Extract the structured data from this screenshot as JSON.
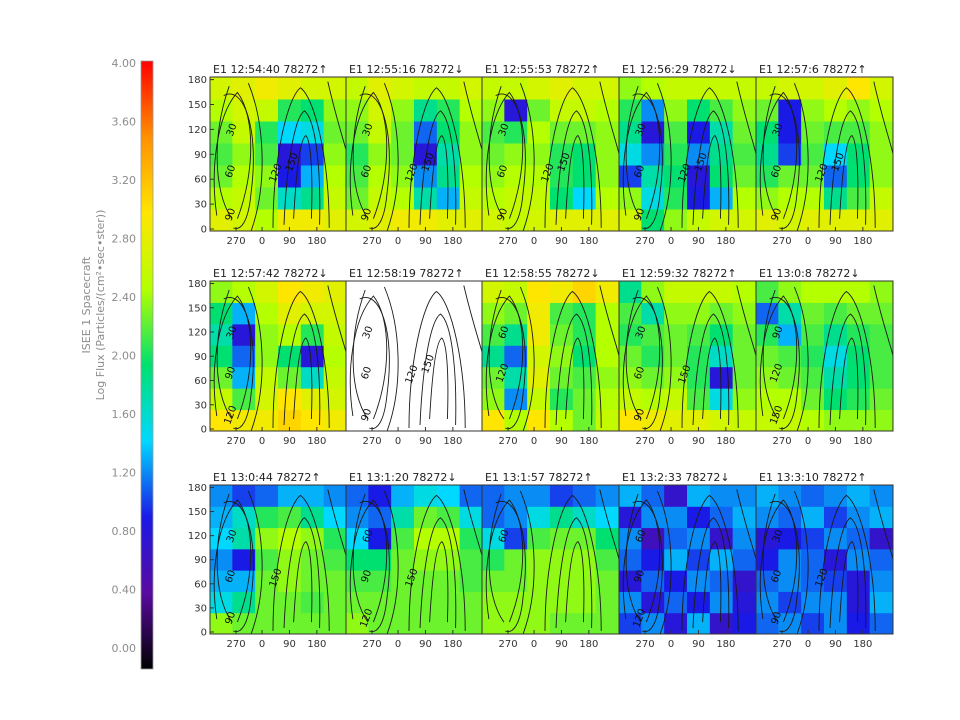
{
  "chart_data": {
    "type": "heatmap",
    "title": "",
    "colorbar": {
      "label_lines": [
        "ISEE 1 Spacecraft",
        "Log Flux (Particles/(cm²•sec•ster))"
      ],
      "ticks": [
        "0.00",
        "0.40",
        "0.80",
        "1.20",
        "1.60",
        "2.00",
        "2.40",
        "2.80",
        "3.20",
        "3.60",
        "4.00"
      ],
      "range": [
        0.0,
        4.0
      ],
      "colors": [
        "#000000",
        "#5a0aa0",
        "#1a1ae6",
        "#00d8ff",
        "#00e070",
        "#b4ff00",
        "#ffe600",
        "#ff9000",
        "#ff0000"
      ]
    },
    "x_ticks": [
      "270",
      "0",
      "90",
      "180"
    ],
    "y_ticks": [
      "0",
      "30",
      "60",
      "90",
      "120",
      "150",
      "180"
    ],
    "panels": [
      {
        "title": "E1 12:54:40 78272↑",
        "contour_labels": [
          "30",
          "60",
          "90",
          "120",
          "150"
        ],
        "grid": [
          [
            2.8,
            2.7,
            2.5,
            2.9,
            2.9,
            2.8
          ],
          [
            2.5,
            2.6,
            2.3,
            1.7,
            1.9,
            2.6
          ],
          [
            2.3,
            2.5,
            2.4,
            1.0,
            1.4,
            2.5
          ],
          [
            2.2,
            2.4,
            2.2,
            0.9,
            1.1,
            2.4
          ],
          [
            2.3,
            2.6,
            2.1,
            1.5,
            1.6,
            2.3
          ],
          [
            2.5,
            2.7,
            2.6,
            2.1,
            2.0,
            2.4
          ],
          [
            2.7,
            2.8,
            2.9,
            2.8,
            2.7,
            2.7
          ]
        ]
      },
      {
        "title": "E1 12:55:16 78272↓",
        "contour_labels": [
          "30",
          "60",
          "90",
          "120",
          "150"
        ],
        "grid": [
          [
            2.7,
            2.8,
            2.9,
            2.9,
            2.8,
            2.8
          ],
          [
            2.3,
            2.6,
            2.5,
            1.8,
            1.4,
            2.6
          ],
          [
            2.2,
            2.5,
            2.4,
            1.3,
            1.9,
            2.5
          ],
          [
            2.1,
            2.4,
            2.3,
            0.9,
            1.8,
            2.4
          ],
          [
            2.3,
            2.6,
            2.3,
            1.2,
            2.0,
            2.4
          ],
          [
            2.4,
            2.7,
            2.4,
            1.9,
            2.1,
            2.5
          ],
          [
            2.6,
            2.8,
            2.7,
            2.6,
            2.6,
            2.7
          ]
        ]
      },
      {
        "title": "E1 12:55:53 78272↑",
        "contour_labels": [
          "30",
          "60",
          "90",
          "120",
          "150"
        ],
        "grid": [
          [
            2.7,
            2.6,
            2.7,
            2.8,
            2.8,
            2.8
          ],
          [
            2.5,
            2.6,
            2.6,
            2.0,
            1.5,
            2.5
          ],
          [
            2.4,
            2.5,
            2.5,
            2.1,
            2.0,
            2.4
          ],
          [
            2.3,
            2.4,
            2.4,
            2.1,
            2.0,
            2.4
          ],
          [
            2.2,
            2.1,
            2.5,
            2.3,
            2.3,
            2.4
          ],
          [
            2.4,
            0.9,
            2.3,
            2.6,
            2.6,
            2.5
          ],
          [
            2.6,
            2.6,
            2.7,
            2.8,
            2.7,
            2.7
          ]
        ]
      },
      {
        "title": "E1 12:56:29 78272↓",
        "contour_labels": [
          "30",
          "60",
          "90",
          "120",
          "150"
        ],
        "grid": [
          [
            2.7,
            2.0,
            2.4,
            2.6,
            2.7,
            2.7
          ],
          [
            2.4,
            1.6,
            2.1,
            1.0,
            1.4,
            2.5
          ],
          [
            1.1,
            1.8,
            2.0,
            0.9,
            2.0,
            2.3
          ],
          [
            1.6,
            1.3,
            2.1,
            1.3,
            1.9,
            2.2
          ],
          [
            1.9,
            0.9,
            2.2,
            1.0,
            1.8,
            2.3
          ],
          [
            2.1,
            1.3,
            2.4,
            2.0,
            2.2,
            2.4
          ],
          [
            2.4,
            2.5,
            2.6,
            2.6,
            2.6,
            2.6
          ]
        ]
      },
      {
        "title": "E1 12:57:6 78272↑",
        "contour_labels": [
          "30",
          "60",
          "90",
          "120",
          "150"
        ],
        "grid": [
          [
            2.8,
            2.7,
            2.8,
            2.8,
            2.8,
            2.8
          ],
          [
            2.4,
            2.5,
            2.5,
            1.9,
            2.2,
            2.6
          ],
          [
            2.1,
            2.3,
            2.3,
            1.2,
            2.0,
            2.4
          ],
          [
            1.9,
            1.1,
            2.2,
            1.5,
            2.0,
            2.4
          ],
          [
            2.0,
            1.0,
            2.3,
            2.2,
            2.2,
            2.4
          ],
          [
            2.3,
            1.0,
            2.4,
            2.5,
            2.4,
            2.5
          ],
          [
            2.6,
            2.7,
            2.7,
            2.8,
            3.0,
            2.7
          ]
        ]
      },
      {
        "title": "E1 12:57:42 78272↓",
        "contour_labels": [
          "30",
          "90",
          "120"
        ],
        "grid": [
          [
            3.0,
            2.9,
            2.9,
            3.1,
            3.0,
            2.9
          ],
          [
            2.6,
            2.2,
            2.7,
            3.0,
            2.8,
            2.7
          ],
          [
            2.3,
            1.4,
            2.6,
            2.3,
            1.7,
            2.6
          ],
          [
            2.0,
            1.2,
            2.4,
            2.0,
            0.9,
            2.5
          ],
          [
            1.8,
            0.9,
            2.4,
            2.5,
            2.1,
            2.6
          ],
          [
            2.0,
            1.4,
            2.5,
            2.8,
            2.7,
            2.7
          ],
          [
            2.4,
            2.5,
            2.7,
            3.0,
            2.9,
            2.8
          ]
        ]
      },
      {
        "title": "E1 12:58:19 78272↑",
        "contour_labels": [
          "30",
          "60",
          "90",
          "120",
          "150"
        ],
        "grid": null
      },
      {
        "title": "E1 12:58:55 78272↓",
        "contour_labels": [
          "60",
          "120"
        ],
        "grid": [
          [
            3.0,
            2.5,
            3.0,
            2.5,
            2.3,
            2.6
          ],
          [
            2.4,
            1.3,
            2.6,
            2.1,
            2.3,
            2.5
          ],
          [
            2.3,
            1.8,
            2.8,
            2.3,
            2.2,
            2.4
          ],
          [
            1.9,
            1.2,
            2.7,
            2.4,
            2.0,
            2.5
          ],
          [
            2.2,
            1.9,
            2.9,
            2.3,
            2.1,
            2.5
          ],
          [
            2.4,
            2.3,
            2.9,
            2.2,
            2.1,
            2.5
          ],
          [
            2.7,
            2.6,
            3.0,
            2.9,
            3.1,
            2.9
          ]
        ]
      },
      {
        "title": "E1 12:59:32 78272↑",
        "contour_labels": [
          "30",
          "60",
          "90",
          "150"
        ],
        "grid": [
          [
            3.0,
            2.9,
            2.8,
            2.8,
            2.7,
            2.6
          ],
          [
            2.6,
            2.5,
            2.6,
            2.2,
            1.6,
            2.4
          ],
          [
            2.4,
            2.3,
            2.4,
            2.1,
            0.9,
            2.3
          ],
          [
            2.3,
            2.1,
            2.3,
            2.1,
            1.7,
            2.3
          ],
          [
            2.1,
            2.2,
            2.3,
            2.2,
            2.0,
            2.3
          ],
          [
            2.2,
            1.8,
            2.4,
            2.4,
            2.3,
            2.4
          ],
          [
            1.9,
            2.4,
            2.6,
            2.6,
            2.6,
            2.5
          ]
        ]
      },
      {
        "title": "E1 13:0:8 78272↓",
        "contour_labels": [
          "90",
          "120",
          "150"
        ],
        "grid": [
          [
            2.6,
            2.6,
            2.5,
            2.4,
            2.4,
            2.4
          ],
          [
            2.5,
            2.5,
            2.3,
            2.0,
            2.1,
            2.3
          ],
          [
            2.4,
            2.3,
            2.2,
            1.8,
            2.0,
            2.2
          ],
          [
            2.3,
            2.2,
            2.1,
            1.6,
            2.0,
            2.2
          ],
          [
            2.1,
            1.4,
            2.2,
            1.9,
            2.1,
            2.2
          ],
          [
            1.2,
            1.8,
            2.3,
            2.2,
            2.3,
            2.3
          ],
          [
            2.2,
            2.4,
            2.5,
            2.5,
            2.5,
            2.4
          ]
        ]
      },
      {
        "title": "E1 13:0:44 78272↑",
        "contour_labels": [
          "30",
          "60",
          "90",
          "150"
        ],
        "grid": [
          [
            2.4,
            2.3,
            2.3,
            2.3,
            2.3,
            2.3
          ],
          [
            1.6,
            1.9,
            2.3,
            2.3,
            2.2,
            2.3
          ],
          [
            1.4,
            1.4,
            2.3,
            2.4,
            2.3,
            2.3
          ],
          [
            1.3,
            1.0,
            2.2,
            2.4,
            2.3,
            2.2
          ],
          [
            1.5,
            1.8,
            2.4,
            2.5,
            2.4,
            2.1
          ],
          [
            1.4,
            1.7,
            2.1,
            2.2,
            1.9,
            1.5
          ],
          [
            1.3,
            1.1,
            1.2,
            1.4,
            1.4,
            1.3
          ]
        ]
      },
      {
        "title": "E1 13:1:20 78272↓",
        "contour_labels": [
          "60",
          "90",
          "120",
          "150"
        ],
        "grid": [
          [
            2.4,
            2.3,
            2.3,
            2.3,
            2.3,
            2.3
          ],
          [
            2.3,
            2.3,
            2.3,
            2.3,
            2.3,
            2.3
          ],
          [
            2.2,
            2.2,
            2.3,
            2.3,
            2.3,
            2.2
          ],
          [
            2.0,
            2.0,
            2.3,
            2.4,
            2.4,
            2.2
          ],
          [
            1.5,
            1.0,
            2.2,
            2.5,
            2.5,
            2.1
          ],
          [
            1.3,
            1.2,
            1.8,
            2.3,
            2.2,
            1.6
          ],
          [
            1.2,
            1.0,
            1.4,
            1.6,
            1.5,
            1.2
          ]
        ]
      },
      {
        "title": "E1 13:1:57 78272↑",
        "contour_labels": [
          "60"
        ],
        "grid": [
          [
            2.4,
            2.4,
            2.4,
            2.3,
            2.3,
            2.3
          ],
          [
            2.4,
            2.4,
            2.4,
            2.4,
            2.4,
            2.3
          ],
          [
            2.3,
            2.3,
            2.4,
            2.4,
            2.4,
            2.3
          ],
          [
            2.1,
            2.3,
            2.4,
            2.4,
            2.4,
            2.2
          ],
          [
            1.6,
            1.1,
            2.2,
            2.3,
            2.3,
            2.0
          ],
          [
            1.2,
            1.3,
            1.6,
            1.9,
            1.7,
            1.5
          ],
          [
            1.2,
            1.3,
            1.3,
            1.1,
            1.2,
            1.3
          ]
        ]
      },
      {
        "title": "E1 13:2:33 78272↓",
        "contour_labels": [
          "60",
          "90",
          "120"
        ],
        "grid": [
          [
            1.1,
            1.3,
            0.9,
            1.4,
            0.8,
            1.0
          ],
          [
            1.3,
            0.9,
            1.2,
            1.0,
            1.3,
            0.9
          ],
          [
            0.9,
            1.2,
            1.0,
            1.3,
            1.2,
            0.8
          ],
          [
            1.2,
            1.0,
            1.4,
            1.1,
            1.4,
            1.2
          ],
          [
            1.3,
            0.7,
            1.2,
            1.3,
            0.8,
            1.3
          ],
          [
            0.9,
            1.3,
            1.3,
            1.0,
            1.2,
            1.4
          ],
          [
            1.4,
            1.2,
            0.8,
            1.4,
            1.3,
            1.3
          ]
        ]
      },
      {
        "title": "E1 13:3:10 78272↑",
        "contour_labels": [
          "30",
          "60",
          "90",
          "120"
        ],
        "grid": [
          [
            1.2,
            1.3,
            1.1,
            1.3,
            1.0,
            1.2
          ],
          [
            1.3,
            1.1,
            1.3,
            1.3,
            0.9,
            1.4
          ],
          [
            1.2,
            1.3,
            1.2,
            1.1,
            0.9,
            1.3
          ],
          [
            1.0,
            1.3,
            1.2,
            0.9,
            1.3,
            1.2
          ],
          [
            0.9,
            1.0,
            1.1,
            1.3,
            1.2,
            0.8
          ],
          [
            1.3,
            1.2,
            1.4,
            1.1,
            1.3,
            1.4
          ],
          [
            1.4,
            1.3,
            1.2,
            1.3,
            1.4,
            1.3
          ]
        ]
      }
    ]
  }
}
